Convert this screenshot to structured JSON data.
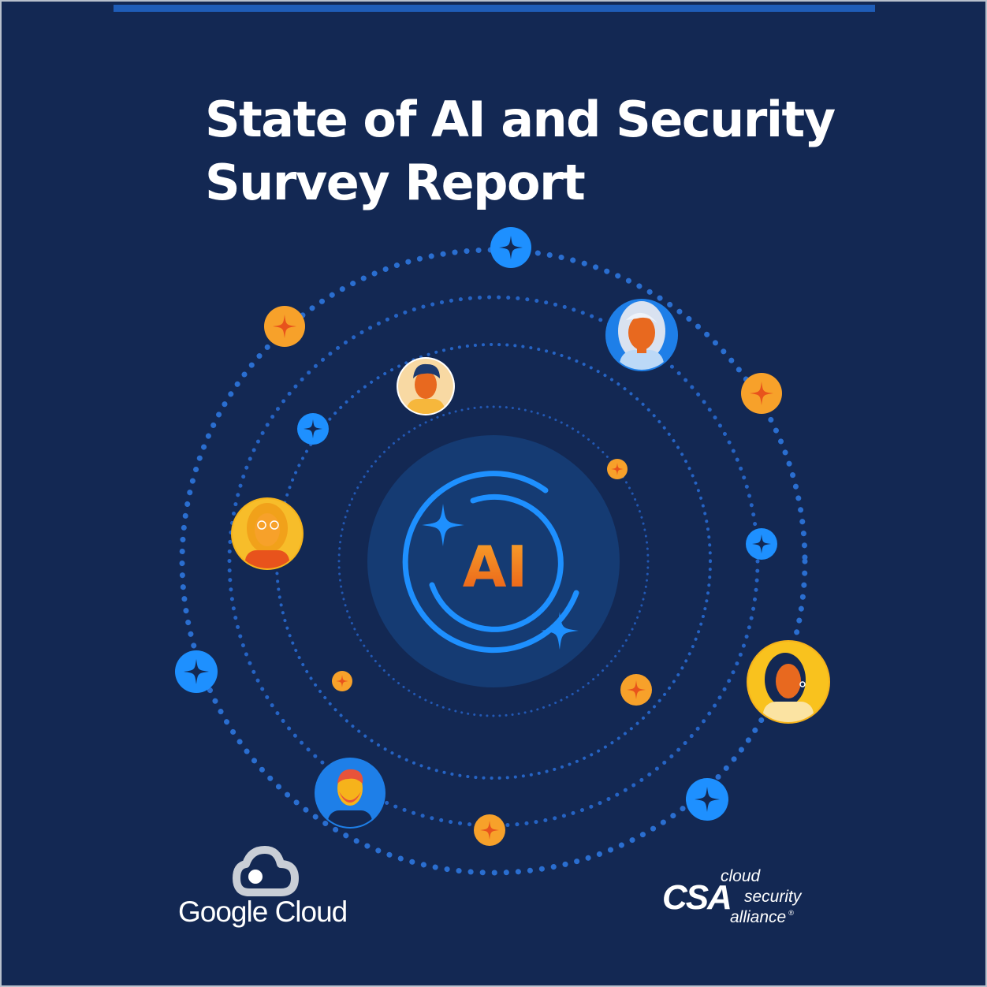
{
  "title_line1": "State of AI and Security",
  "title_line2": "Survey Report",
  "center_label": "AI",
  "google_cloud": {
    "wordmark": "Google Cloud",
    "icon": "cloud-icon"
  },
  "csa": {
    "mark": "CSA",
    "word1": "cloud",
    "word2": "security",
    "word3": "alliance",
    "registered": "®"
  },
  "colors": {
    "background": "#132853",
    "accent_blue": "#1e90ff",
    "accent_orange": "#f7a12a",
    "ring_dots": "#2b6fd3",
    "title_text": "#ffffff"
  }
}
